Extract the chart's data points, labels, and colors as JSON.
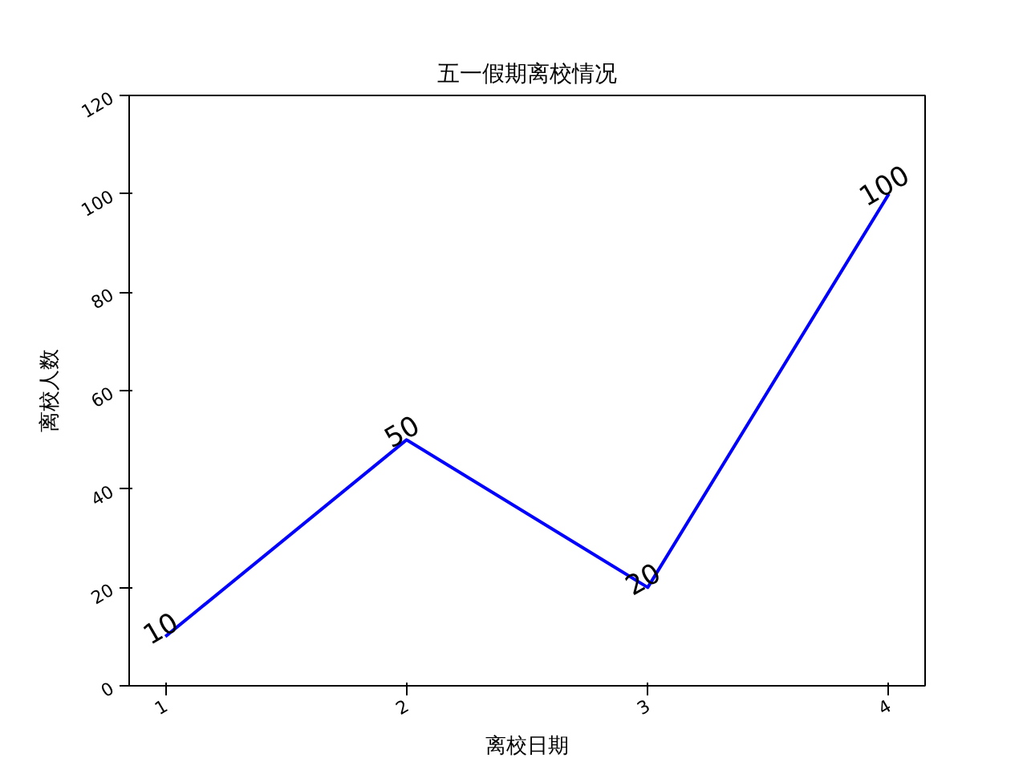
{
  "chart_data": {
    "type": "line",
    "title": "五一假期离校情况",
    "xlabel": "离校日期",
    "ylabel": "离校人数",
    "x": [
      1,
      2,
      3,
      4
    ],
    "series": [
      {
        "color": "#0000ff",
        "values": [
          10,
          50,
          20,
          100
        ]
      }
    ],
    "xlim": [
      0.85,
      4.15
    ],
    "xticks": [
      1,
      2,
      3,
      4
    ],
    "ylim": [
      0,
      120
    ],
    "yticks": [
      0,
      20,
      40,
      60,
      80,
      100,
      120
    ],
    "data_labels": true,
    "marker": "none",
    "line_style": "solid"
  }
}
